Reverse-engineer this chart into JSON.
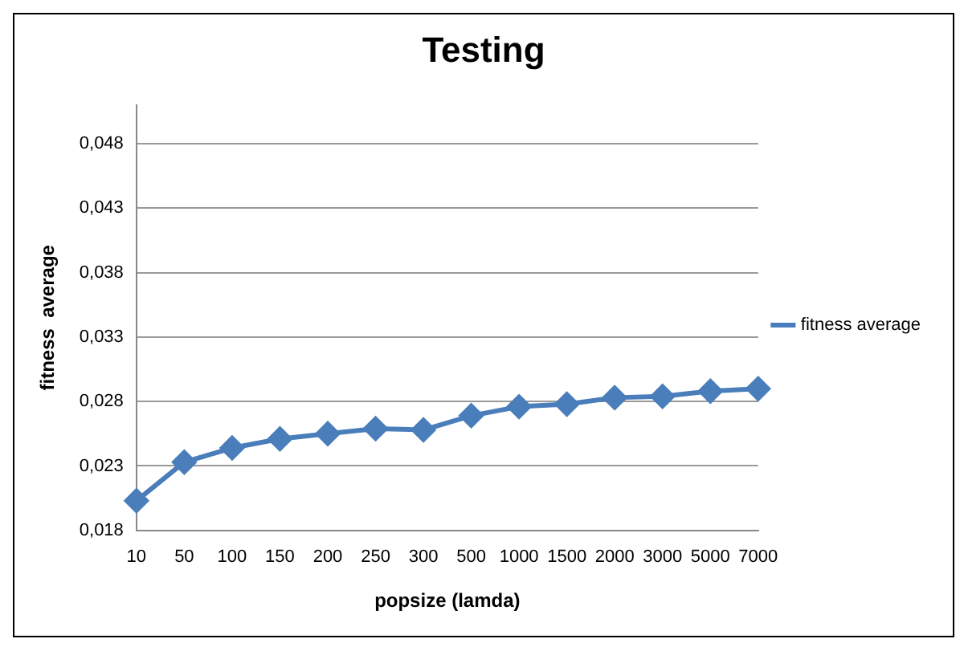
{
  "chart_data": {
    "type": "line",
    "title": "Testing",
    "xlabel": "popsize (lamda)",
    "ylabel": "fitness  average",
    "categories": [
      "10",
      "50",
      "100",
      "150",
      "200",
      "250",
      "300",
      "500",
      "1000",
      "1500",
      "2000",
      "3000",
      "5000",
      "7000"
    ],
    "series": [
      {
        "name": "fitness average",
        "color": "#4a7ebb",
        "values": [
          0.0203,
          0.0233,
          0.0244,
          0.0251,
          0.0255,
          0.0259,
          0.0258,
          0.0269,
          0.0276,
          0.0278,
          0.0283,
          0.0284,
          0.0288,
          0.029
        ]
      }
    ],
    "ylim": [
      0.018,
      0.051
    ],
    "yticks": [
      {
        "value": 0.018,
        "label": "0,018"
      },
      {
        "value": 0.023,
        "label": "0,023"
      },
      {
        "value": 0.028,
        "label": "0,028"
      },
      {
        "value": 0.033,
        "label": "0,033"
      },
      {
        "value": 0.038,
        "label": "0,038"
      },
      {
        "value": 0.043,
        "label": "0,043"
      },
      {
        "value": 0.048,
        "label": "0,048"
      }
    ],
    "grid": "y",
    "legend": "right",
    "marker": "diamond",
    "line_style": "solid"
  }
}
